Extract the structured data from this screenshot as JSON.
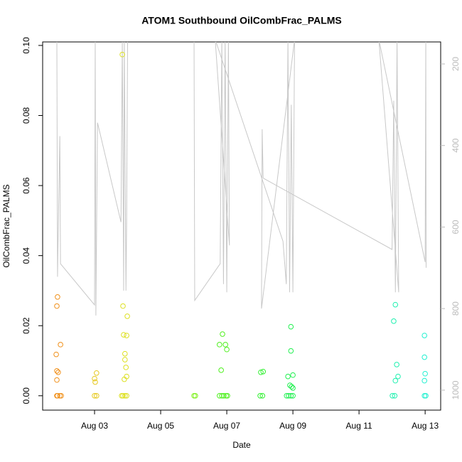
{
  "chart_data": {
    "type": "scatter",
    "title": "ATOM1 Southbound OilCombFrac_PALMS",
    "x_label": "Date",
    "y_label": "OilCombFrac_PALMS",
    "xlim": [
      1.43,
      13.47
    ],
    "ylim": [
      -0.0041,
      0.101
    ],
    "y2lim": [
      1049,
      146
    ],
    "xticks": [
      {
        "value": 3,
        "label": "Aug 03"
      },
      {
        "value": 5,
        "label": "Aug 05"
      },
      {
        "value": 7,
        "label": "Aug 07"
      },
      {
        "value": 9,
        "label": "Aug 09"
      },
      {
        "value": 11,
        "label": "Aug 11"
      },
      {
        "value": 13,
        "label": "Aug 13"
      }
    ],
    "yticks": [
      {
        "value": 0,
        "label": "0.00"
      },
      0.02,
      0.04,
      0.06,
      0.08,
      {
        "value": 0.1,
        "label": "0.10"
      }
    ],
    "y2ticks": [
      200,
      400,
      600,
      800,
      1000
    ],
    "series": [
      {
        "type": "scatter",
        "color": "#f0901a",
        "x": [
          1.86,
          1.88,
          1.95,
          1.99,
          1.88,
          1.86,
          1.84,
          1.86,
          1.9,
          1.86,
          1.97
        ],
        "values": [
          0,
          0,
          0,
          0,
          0.0282,
          0.0256,
          0.0118,
          0.0071,
          0.0067,
          0.0045,
          0.0146
        ]
      },
      {
        "type": "scatter",
        "color": "#e6c81e",
        "x": [
          3.0,
          3.06,
          3.02,
          3.0,
          3.06
        ],
        "values": [
          0,
          0,
          0.0039,
          0.0049,
          0.0065
        ]
      },
      {
        "type": "scatter",
        "color": "#dde020",
        "x": [
          3.82,
          3.86,
          3.92,
          3.97,
          3.84,
          3.86,
          3.99,
          3.88,
          3.97,
          3.92,
          3.92,
          3.95,
          3.97,
          3.9
        ],
        "values": [
          0,
          0,
          0,
          0,
          0.0974,
          0.0256,
          0.0227,
          0.0174,
          0.0172,
          0.012,
          0.0103,
          0.0081,
          0.0055,
          0.0047
        ]
      },
      {
        "type": "scatter",
        "color": "#80f020",
        "x": [
          6.01,
          6.05
        ],
        "values": [
          0,
          0
        ]
      },
      {
        "type": "scatter",
        "color": "#50f020",
        "x": [
          6.78,
          6.85,
          6.91,
          6.98,
          7.02,
          6.87,
          6.78,
          6.96,
          7.0,
          6.83
        ],
        "values": [
          0,
          0,
          0,
          0,
          0,
          0.0176,
          0.0146,
          0.0146,
          0.0132,
          0.0073
        ]
      },
      {
        "type": "scatter",
        "color": "#30f030",
        "x": [
          8.01,
          8.08,
          8.03,
          8.1
        ],
        "values": [
          0,
          0,
          0.0067,
          0.0069
        ]
      },
      {
        "type": "scatter",
        "color": "#20f050",
        "x": [
          8.81,
          8.87,
          8.94,
          9.0,
          8.94,
          8.94,
          8.85,
          9.0,
          8.91,
          8.96,
          9.0
        ],
        "values": [
          0,
          0,
          0,
          0,
          0.0197,
          0.0128,
          0.0055,
          0.0059,
          0.003,
          0.0026,
          0.0022
        ]
      },
      {
        "type": "scatter",
        "color": "#20f0b0",
        "x": [
          12.01,
          12.08,
          12.1,
          12.05,
          12.14,
          12.1,
          12.18
        ],
        "values": [
          0,
          0,
          0.026,
          0.0213,
          0.0089,
          0.0043,
          0.0055
        ]
      },
      {
        "type": "scatter",
        "color": "#20f0d0",
        "x": [
          12.98,
          13.02,
          12.98,
          12.98,
          13.0,
          12.98
        ],
        "values": [
          0,
          0,
          0.0172,
          0.011,
          0.0063,
          0.0043
        ]
      },
      {
        "type": "line",
        "axis": "y2",
        "color": "#c8c8c8",
        "x": [
          1.86,
          1.88,
          1.9,
          1.95,
          1.97,
          3.0,
          3.02,
          3.04,
          3.09,
          3.8,
          3.84,
          3.88,
          3.9,
          3.95,
          3.97,
          4.0,
          6.0,
          6.01,
          6.03,
          6.8,
          6.85,
          6.9,
          6.95,
          7.0,
          7.05,
          7.08,
          6.65,
          8.7,
          8.8,
          8.85,
          8.9,
          8.95,
          9.0,
          9.05,
          8.05,
          8.07,
          8.1,
          12.0,
          12.05,
          12.1,
          12.15,
          12.2,
          11.6,
          13.0,
          13.02,
          13.03
        ],
        "values": [
          140,
          722,
          617,
          377,
          690,
          791,
          140,
          817,
          344,
          588,
          140,
          756,
          140,
          756,
          591,
          140,
          140,
          140,
          780,
          690,
          140,
          740,
          140,
          760,
          140,
          645,
          140,
          635,
          740,
          140,
          760,
          300,
          760,
          140,
          800,
          360,
          480,
          655,
          290,
          760,
          140,
          760,
          140,
          686,
          140,
          700
        ]
      }
    ]
  }
}
